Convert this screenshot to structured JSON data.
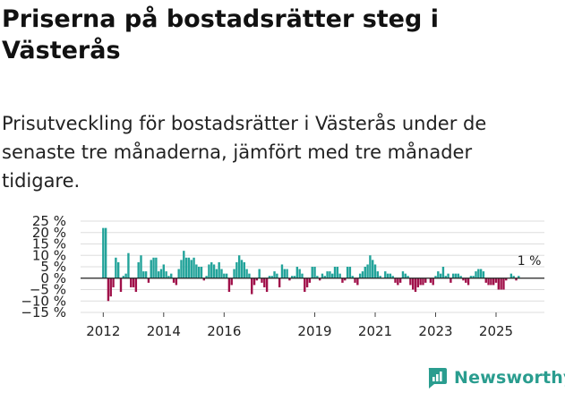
{
  "header": {
    "title": "Priserna på bostadsrätter steg i Västerås",
    "subtitle": "Prisutveckling för bostadsrätter i Västerås under de senaste tre månaderna, jämfört med tre månader tidigare."
  },
  "brand": {
    "name": "Newsworthy",
    "color": "#2a9d8f"
  },
  "colors": {
    "positive": "#22a39a",
    "negative": "#a0114a",
    "grid": "#dddddd",
    "zero": "#222222"
  },
  "chart_data": {
    "type": "bar",
    "title": "Priserna på bostadsrätter steg i Västerås",
    "xlabel": "",
    "ylabel": "",
    "x_range": [
      2011.25,
      2026.6
    ],
    "ylim": [
      -15,
      25
    ],
    "y_ticks": [
      25,
      20,
      15,
      10,
      5,
      0,
      -5,
      -10,
      -15
    ],
    "y_tick_labels": [
      "25 %",
      "20 %",
      "15 %",
      "10 %",
      "5 %",
      "0 %",
      "−5 %",
      "−10 %",
      "−15 %"
    ],
    "x_ticks": [
      2012,
      2014,
      2016,
      2019,
      2021,
      2023,
      2025
    ],
    "x_tick_labels": [
      "2012",
      "2014",
      "2016",
      "2019",
      "2021",
      "2023",
      "2025"
    ],
    "annotation": {
      "text": "1 %",
      "x": 2026.1,
      "y": 1
    },
    "start_year": 2012,
    "months_per_bar": 1,
    "values": [
      22,
      22,
      -10,
      -8,
      -4,
      9,
      7,
      -6,
      1,
      2,
      11,
      -4,
      -4,
      -6,
      7,
      10,
      3,
      3,
      -2,
      8,
      9,
      9,
      3,
      4,
      6,
      3,
      1,
      2,
      -2,
      -3,
      4,
      8,
      12,
      9,
      9,
      8,
      9,
      6,
      5,
      5,
      -1,
      1,
      6,
      7,
      6,
      4,
      7,
      4,
      2,
      2,
      -6,
      -3,
      4,
      7,
      10,
      8,
      7,
      4,
      2,
      -7,
      -3,
      -1,
      4,
      -2,
      -4,
      -6,
      1,
      1,
      3,
      2,
      -4,
      6,
      4,
      4,
      -1,
      1,
      1,
      5,
      4,
      2,
      -6,
      -4,
      -2,
      5,
      5,
      1,
      -1,
      2,
      1,
      3,
      3,
      2,
      5,
      5,
      2,
      -2,
      -1,
      5,
      5,
      1,
      -2,
      -3,
      2,
      3,
      5,
      6,
      10,
      8,
      6,
      3,
      1,
      0,
      3,
      2,
      2,
      1,
      -2,
      -3,
      -2,
      3,
      2,
      1,
      -3,
      -5,
      -6,
      -4,
      -3,
      -3,
      -2,
      0,
      -2,
      -3,
      1,
      3,
      2,
      5,
      1,
      2,
      -2,
      2,
      2,
      2,
      1,
      -1,
      -2,
      -3,
      1,
      1,
      3,
      4,
      4,
      3,
      -2,
      -3,
      -3,
      -3,
      -2,
      -5,
      -5,
      -5,
      -1,
      0,
      2,
      1,
      -1,
      1
    ]
  }
}
